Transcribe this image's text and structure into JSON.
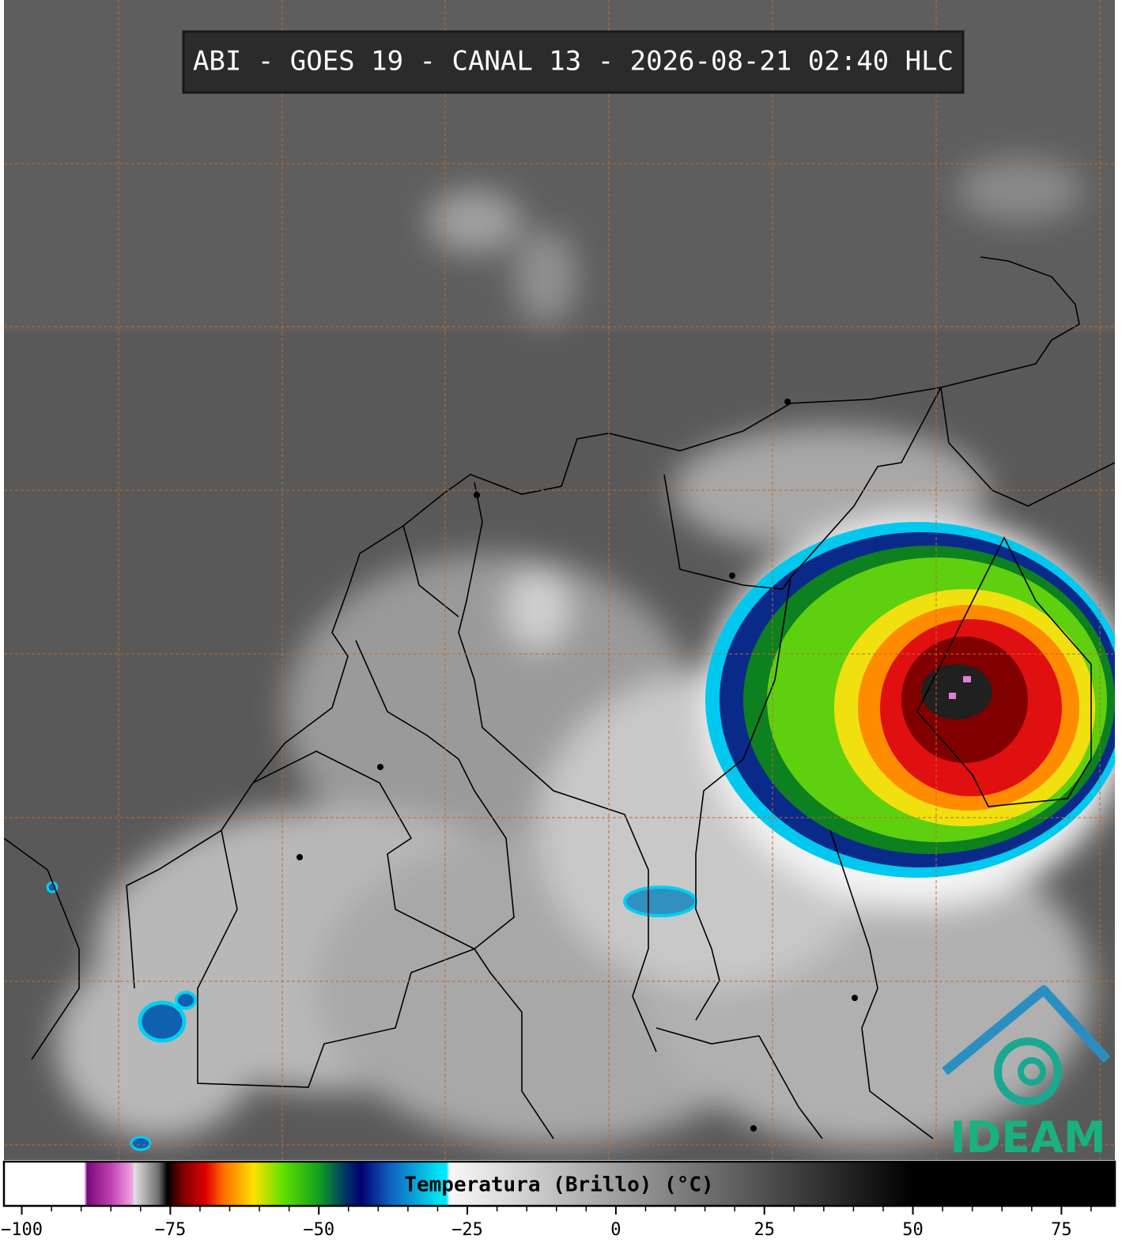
{
  "header": {
    "title": "ABI - GOES 19 - CANAL 13 - 2026-08-21 02:40 HLC"
  },
  "logo": {
    "text": "IDEAM"
  },
  "colorbar": {
    "label": "Temperatura (Brillo) (°C)",
    "lim": [
      -103,
      84
    ],
    "ticks": [
      {
        "value": -100,
        "label": "−100"
      },
      {
        "value": -75,
        "label": "−75"
      },
      {
        "value": -50,
        "label": "−50"
      },
      {
        "value": -25,
        "label": "−25"
      },
      0,
      25,
      50,
      75
    ],
    "minor_ticks": [
      -95,
      -90,
      -85,
      -80,
      -70,
      -65,
      -60,
      -55,
      -45,
      -40,
      -35,
      -30,
      -20,
      -15,
      -10,
      -5,
      5,
      10,
      15,
      20,
      30,
      35,
      40,
      45,
      55,
      60,
      65,
      70,
      80
    ],
    "color_stops": [
      {
        "value": -103,
        "color": "#ffffff"
      },
      {
        "value": -89.5,
        "color": "#ffffff"
      },
      {
        "value": -89,
        "color": "#7a0a7a"
      },
      {
        "value": -85,
        "color": "#c040b0"
      },
      {
        "value": -81.5,
        "color": "#f0a0e0"
      },
      {
        "value": -81,
        "color": "#e0e0e0"
      },
      {
        "value": -77,
        "color": "#707070"
      },
      {
        "value": -75.5,
        "color": "#000000"
      },
      {
        "value": -73,
        "color": "#7a0000"
      },
      {
        "value": -69,
        "color": "#e00000"
      },
      {
        "value": -66,
        "color": "#ff7000"
      },
      {
        "value": -61,
        "color": "#ffe000"
      },
      {
        "value": -56,
        "color": "#60e000"
      },
      {
        "value": -50,
        "color": "#10a020"
      },
      {
        "value": -46,
        "color": "#004060"
      },
      {
        "value": -43,
        "color": "#000070"
      },
      {
        "value": -38,
        "color": "#1060c0"
      },
      {
        "value": -30,
        "color": "#00e0f0"
      },
      {
        "value": -28.5,
        "color": "#00e8ff"
      },
      {
        "value": -28,
        "color": "#f8f8f8"
      },
      {
        "value": 0,
        "color": "#a0a0a0"
      },
      {
        "value": 50,
        "color": "#000000"
      },
      {
        "value": 84,
        "color": "#000000"
      }
    ]
  }
}
